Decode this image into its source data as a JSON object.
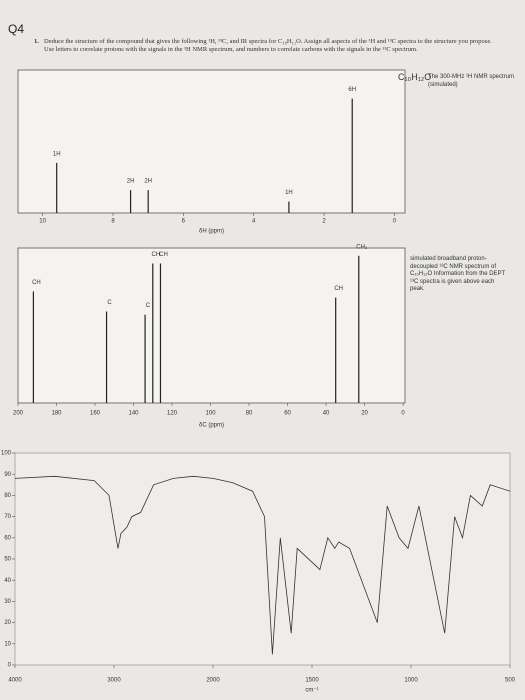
{
  "question": {
    "number": "Q4",
    "item": "1.",
    "text": "Deduce the structure of the compound that gives the following ¹H, ¹³C, and IR spectra for C₁₀H₁₂O. Assign all aspects of the ¹H and ¹³C spectra to the structure you propose. Use letters to correlate protons with the signals in the ¹H NMR spectrum, and numbers to correlate carbons with the signals in the ¹³C spectrum."
  },
  "chart_data": [
    {
      "type": "stick",
      "note_formula": "C₁₀H₁₂O",
      "note": "The 300-MHz ¹H NMR spectrum (simulated)",
      "x_label": "δH (ppm)",
      "x": [
        9.6,
        7.5,
        7.0,
        3.0,
        1.2
      ],
      "values": [
        0.35,
        0.16,
        0.16,
        0.08,
        0.8
      ],
      "peak_labels": [
        "1H",
        "2H",
        "2H",
        "1H",
        "6H"
      ],
      "xlim": [
        10.7,
        -0.3
      ],
      "ylim": [
        0,
        1
      ],
      "xticks": [
        10,
        8,
        6,
        4,
        2,
        0
      ],
      "color": "#222"
    },
    {
      "type": "stick",
      "note": "simulated broadband proton-decoupled ¹³C NMR spectrum of C₁₀H₁₂O Information from the DEPT ¹³C spectra is given above each peak.",
      "x_label": "δC (ppm)",
      "x": [
        192,
        154,
        134,
        130,
        126,
        35,
        23
      ],
      "values": [
        0.72,
        0.59,
        0.57,
        0.9,
        0.9,
        0.68,
        0.95
      ],
      "peak_labels": [
        "CH",
        "C",
        "C",
        "CH",
        "CH",
        "CH",
        "CH₃"
      ],
      "xlim": [
        200,
        -1
      ],
      "ylim": [
        0,
        1
      ],
      "xticks": [
        200,
        180,
        160,
        140,
        120,
        100,
        80,
        60,
        40,
        20,
        0
      ],
      "color": "#222"
    },
    {
      "type": "line",
      "x_label": "cm⁻¹",
      "x": [
        4000,
        3600,
        3200,
        3050,
        2960,
        2930,
        2870,
        2820,
        2730,
        2600,
        2400,
        2200,
        2000,
        1900,
        1800,
        1740,
        1700,
        1660,
        1605,
        1575,
        1460,
        1420,
        1385,
        1365,
        1310,
        1210,
        1170,
        1120,
        1060,
        1015,
        960,
        830,
        780,
        740,
        700,
        640,
        600,
        500
      ],
      "values": [
        88,
        89,
        87,
        80,
        55,
        62,
        65,
        70,
        72,
        85,
        88,
        89,
        88,
        86,
        82,
        70,
        5,
        60,
        15,
        55,
        45,
        60,
        55,
        58,
        55,
        30,
        20,
        75,
        60,
        55,
        75,
        15,
        70,
        60,
        80,
        75,
        85,
        82
      ],
      "ylim": [
        0,
        100
      ],
      "yticks": [
        0,
        10,
        20,
        30,
        40,
        50,
        60,
        70,
        80,
        90,
        100
      ],
      "xticks": [
        4000,
        3000,
        2000,
        1500,
        1000,
        500
      ],
      "color": "#333"
    }
  ]
}
